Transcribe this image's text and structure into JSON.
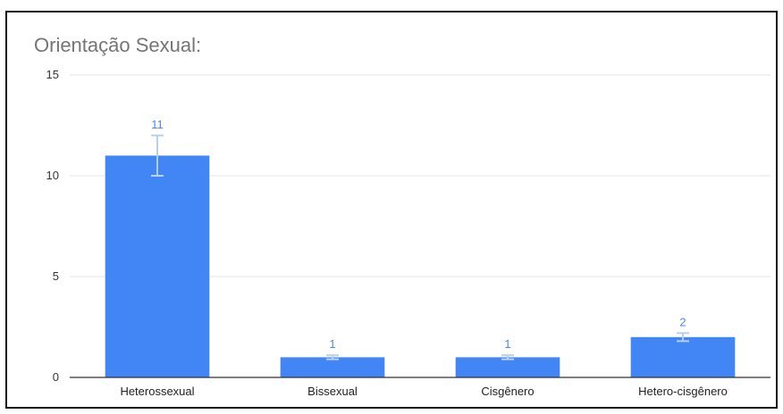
{
  "chart_data": {
    "type": "bar",
    "title": "Orientação Sexual:",
    "xlabel": "",
    "ylabel": "",
    "categories": [
      "Heterossexual",
      "Bissexual",
      "Cisgênero",
      "Hetero-cisgênero"
    ],
    "values": [
      11,
      1,
      1,
      2
    ],
    "data_labels": [
      "11",
      "1",
      "1",
      "2"
    ],
    "error_bars": [
      1,
      0.1,
      0.1,
      0.2
    ],
    "ylim": [
      0,
      15
    ],
    "yticks": [
      0,
      5,
      10,
      15
    ],
    "grid": true,
    "legend": "none",
    "colors": {
      "bar": "#4285f4",
      "label": "#4a86e8",
      "error_bar": "#b7cef5",
      "grid": "#e6e6e6",
      "axis": "#333333"
    }
  }
}
